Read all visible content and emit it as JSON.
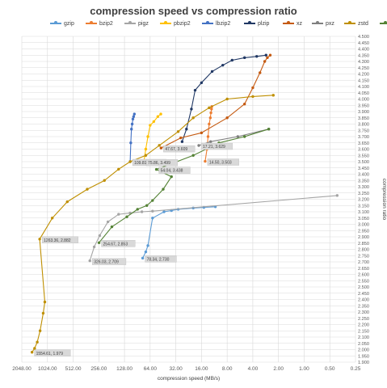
{
  "chart_data": {
    "type": "scatter",
    "title": "compression speed vs compression ratio",
    "xlabel": "compression speed (MB/s)",
    "ylabel": "compression ratio",
    "x_scale": "log2-reversed",
    "xlim": [
      2048,
      0.25
    ],
    "ylim": [
      1.9,
      4.5
    ],
    "x_ticks": [
      "2048.00",
      "1024.00",
      "512.00",
      "256.00",
      "128.00",
      "64.00",
      "32.00",
      "16.00",
      "8.00",
      "4.00",
      "2.00",
      "1.00",
      "0.50",
      "0.25"
    ],
    "y_ticks": [
      "1.900",
      "1.950",
      "2.000",
      "2.050",
      "2.100",
      "2.150",
      "2.200",
      "2.250",
      "2.300",
      "2.350",
      "2.400",
      "2.450",
      "2.500",
      "2.550",
      "2.600",
      "2.650",
      "2.700",
      "2.750",
      "2.800",
      "2.850",
      "2.900",
      "2.950",
      "3.000",
      "3.050",
      "3.100",
      "3.150",
      "3.200",
      "3.250",
      "3.300",
      "3.350",
      "3.400",
      "3.450",
      "3.500",
      "3.550",
      "3.600",
      "3.650",
      "3.700",
      "3.750",
      "3.800",
      "3.850",
      "3.900",
      "3.950",
      "4.000",
      "4.050",
      "4.100",
      "4.150",
      "4.200",
      "4.250",
      "4.300",
      "4.350",
      "4.400",
      "4.450",
      "4.500"
    ],
    "grid": true,
    "legend_position": "top",
    "series": [
      {
        "name": "gzip",
        "color": "#5b9bd5",
        "points": [
          [
            78.34,
            2.73
          ],
          [
            72,
            2.78
          ],
          [
            68,
            2.83
          ],
          [
            60,
            3.05
          ],
          [
            44,
            3.1
          ],
          [
            36,
            3.11
          ],
          [
            30,
            3.12
          ],
          [
            20,
            3.13
          ],
          [
            15,
            3.135
          ],
          [
            11,
            3.14
          ]
        ]
      },
      {
        "name": "bzip2",
        "color": "#ed7d31",
        "points": [
          [
            14.5,
            3.503
          ],
          [
            13.8,
            3.6
          ],
          [
            13.4,
            3.7
          ],
          [
            13,
            3.8
          ],
          [
            12.6,
            3.85
          ],
          [
            12.4,
            3.89
          ],
          [
            12.2,
            3.92
          ],
          [
            12.1,
            3.94
          ]
        ]
      },
      {
        "name": "pigz",
        "color": "#a5a5a5",
        "points": [
          [
            326.03,
            2.709
          ],
          [
            290,
            2.82
          ],
          [
            250,
            2.91
          ],
          [
            200,
            3.02
          ],
          [
            150,
            3.08
          ],
          [
            110,
            3.09
          ],
          [
            80,
            3.1
          ],
          [
            60,
            3.105
          ],
          [
            0.41,
            3.23
          ]
        ]
      },
      {
        "name": "pbzip2",
        "color": "#ffc000",
        "points": [
          [
            75.86,
            3.499
          ],
          [
            72,
            3.6
          ],
          [
            68,
            3.7
          ],
          [
            64,
            3.79
          ],
          [
            58,
            3.82
          ],
          [
            52,
            3.86
          ],
          [
            48,
            3.88
          ]
        ]
      },
      {
        "name": "lbzip2",
        "color": "#4472c4",
        "points": [
          [
            109.81,
            3.5
          ],
          [
            108,
            3.65
          ],
          [
            106,
            3.76
          ],
          [
            104,
            3.8
          ],
          [
            102,
            3.84
          ],
          [
            100,
            3.86
          ],
          [
            98,
            3.88
          ]
        ]
      },
      {
        "name": "plzip",
        "color": "#203864",
        "points": [
          [
            27,
            3.66
          ],
          [
            24,
            3.76
          ],
          [
            21,
            3.92
          ],
          [
            19,
            4.07
          ],
          [
            16,
            4.13
          ],
          [
            12,
            4.22
          ],
          [
            9,
            4.27
          ],
          [
            7,
            4.31
          ],
          [
            5,
            4.33
          ],
          [
            3.6,
            4.34
          ],
          [
            2.8,
            4.35
          ]
        ]
      },
      {
        "name": "xz",
        "color": "#c55a11",
        "points": [
          [
            47.67,
            3.609
          ],
          [
            28,
            3.69
          ],
          [
            16,
            3.73
          ],
          [
            8,
            3.85
          ],
          [
            5,
            3.96
          ],
          [
            4,
            4.09
          ],
          [
            3.3,
            4.21
          ],
          [
            2.9,
            4.3
          ],
          [
            2.7,
            4.33
          ],
          [
            2.5,
            4.35
          ]
        ]
      },
      {
        "name": "pxz",
        "color": "#7f7f7f",
        "points": [
          [
            17.21,
            3.629
          ],
          [
            12.5,
            3.66
          ],
          [
            6,
            3.7
          ],
          [
            2.6,
            3.76
          ]
        ]
      },
      {
        "name": "zstd",
        "color": "#bf8f00",
        "points": [
          [
            1554.61,
            1.979
          ],
          [
            1450,
            2.01
          ],
          [
            1350,
            2.06
          ],
          [
            1250,
            2.15
          ],
          [
            1150,
            2.29
          ],
          [
            1100,
            2.38
          ],
          [
            1263.36,
            2.882
          ],
          [
            900,
            3.05
          ],
          [
            600,
            3.18
          ],
          [
            350,
            3.28
          ],
          [
            220,
            3.35
          ],
          [
            150,
            3.44
          ],
          [
            109.81,
            3.5
          ],
          [
            72,
            3.55
          ],
          [
            50,
            3.63
          ],
          [
            30,
            3.74
          ],
          [
            20,
            3.85
          ],
          [
            13,
            3.93
          ],
          [
            8,
            4.0
          ],
          [
            4,
            4.02
          ],
          [
            2.3,
            4.03
          ]
        ]
      },
      {
        "name": "brotli",
        "color": "#548235",
        "points": [
          [
            254.67,
            2.853
          ],
          [
            180,
            2.98
          ],
          [
            120,
            3.06
          ],
          [
            90,
            3.12
          ],
          [
            70,
            3.15
          ],
          [
            60,
            3.19
          ],
          [
            45,
            3.28
          ],
          [
            36,
            3.38
          ],
          [
            54.04,
            3.438
          ],
          [
            20,
            3.55
          ],
          [
            10,
            3.65
          ],
          [
            5,
            3.7
          ],
          [
            2.6,
            3.76
          ]
        ]
      }
    ],
    "annotations": [
      {
        "text": "1554.61, 1.979",
        "at": [
          1554.61,
          1.979
        ]
      },
      {
        "text": "1263.36, 2.882",
        "at": [
          1263.36,
          2.882
        ]
      },
      {
        "text": "254.67, 2.853",
        "at": [
          254.67,
          2.853
        ]
      },
      {
        "text": "326.03, 2.709",
        "at": [
          326.03,
          2.709
        ]
      },
      {
        "text": "78.34, 2.730",
        "at": [
          78.34,
          2.73
        ]
      },
      {
        "text": "109.81, 3.500",
        "at": [
          109.81,
          3.5
        ]
      },
      {
        "text": "75.86, 3.499",
        "at": [
          75.86,
          3.499
        ]
      },
      {
        "text": "54.04, 3.438",
        "at": [
          54.04,
          3.438
        ]
      },
      {
        "text": "47.67, 3.609",
        "at": [
          47.67,
          3.609
        ]
      },
      {
        "text": "17.21, 3.629",
        "at": [
          17.21,
          3.629
        ]
      },
      {
        "text": "14.50, 3.503",
        "at": [
          14.5,
          3.503
        ]
      }
    ]
  }
}
